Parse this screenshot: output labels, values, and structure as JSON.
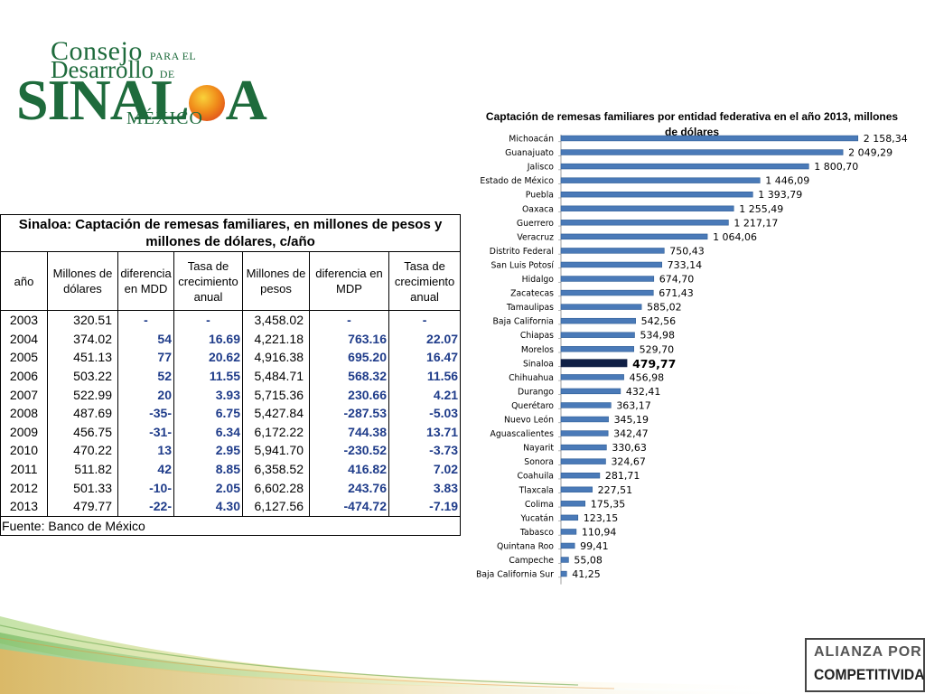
{
  "logo": {
    "line1": "Consejo",
    "line1_small": "PARA EL",
    "line2": "Desarrollo",
    "line2_small": "DE",
    "line3_pre": "SINAL",
    "line3_post": "A",
    "line4": "MÉXICO",
    "colors": {
      "green": "#1e6b3c",
      "sun": "#f08c1a"
    }
  },
  "table": {
    "title": "Sinaloa: Captación de remesas familiares, en millones de pesos y millones de dólares, c/año",
    "headers": [
      "año",
      "Millones de dólares",
      "diferencia en MDD",
      "Tasa de crecimiento anual",
      "Millones de pesos",
      "diferencia en MDP",
      "Tasa de crecimiento anual"
    ],
    "rows": [
      [
        "2003",
        "320.51",
        "-",
        "-",
        "3,458.02",
        "-",
        "-"
      ],
      [
        "2004",
        "374.02",
        "54",
        "16.69",
        "4,221.18",
        "763.16",
        "22.07"
      ],
      [
        "2005",
        "451.13",
        "77",
        "20.62",
        "4,916.38",
        "695.20",
        "16.47"
      ],
      [
        "2006",
        "503.22",
        "52",
        "11.55",
        "5,484.71",
        "568.32",
        "11.56"
      ],
      [
        "2007",
        "522.99",
        "20",
        "3.93",
        "5,715.36",
        "230.66",
        "4.21"
      ],
      [
        "2008",
        "487.69",
        "-35-",
        "6.75",
        "5,427.84",
        "-287.53",
        "-5.03"
      ],
      [
        "2009",
        "456.75",
        "-31-",
        "6.34",
        "6,172.22",
        "744.38",
        "13.71"
      ],
      [
        "2010",
        "470.22",
        "13",
        "2.95",
        "5,941.70",
        "-230.52",
        "-3.73"
      ],
      [
        "2011",
        "511.82",
        "42",
        "8.85",
        "6,358.52",
        "416.82",
        "7.02"
      ],
      [
        "2012",
        "501.33",
        "-10-",
        "2.05",
        "6,602.28",
        "243.76",
        "3.83"
      ],
      [
        "2013",
        "479.77",
        "-22-",
        "4.30",
        "6,127.56",
        "-474.72",
        "-7.19"
      ]
    ],
    "source": "Fuente: Banco de México",
    "colors": {
      "highlight_text": "#1f3c8a"
    }
  },
  "chart_data": {
    "type": "bar",
    "orientation": "horizontal",
    "title": "Captación de remesas familiares por entidad federativa en el año 2013, millones de dólares",
    "categories": [
      "Michoacán",
      "Guanajuato",
      "Jalisco",
      "Estado de México",
      "Puebla",
      "Oaxaca",
      "Guerrero",
      "Veracruz",
      "Distrito Federal",
      "San Luis Potosí",
      "Hidalgo",
      "Zacatecas",
      "Tamaulipas",
      "Baja California",
      "Chiapas",
      "Morelos",
      "Sinaloa",
      "Chihuahua",
      "Durango",
      "Querétaro",
      "Nuevo León",
      "Aguascalientes",
      "Nayarit",
      "Sonora",
      "Coahuila",
      "Tlaxcala",
      "Colima",
      "Yucatán",
      "Tabasco",
      "Quintana Roo",
      "Campeche",
      "Baja California Sur"
    ],
    "values": [
      2158.34,
      2049.29,
      1800.7,
      1446.09,
      1393.79,
      1255.49,
      1217.17,
      1064.06,
      750.43,
      733.14,
      674.7,
      671.43,
      585.02,
      542.56,
      534.98,
      529.7,
      479.77,
      456.98,
      432.41,
      363.17,
      345.19,
      342.47,
      330.63,
      324.67,
      281.71,
      227.51,
      175.35,
      123.15,
      110.94,
      99.41,
      55.08,
      41.25
    ],
    "labels": [
      "2 158,34",
      "2 049,29",
      "1 800,70",
      "1 446,09",
      "1 393,79",
      "1 255,49",
      "1 217,17",
      "1 064,06",
      "750,43",
      "733,14",
      "674,70",
      "671,43",
      "585,02",
      "542,56",
      "534,98",
      "529,70",
      "479,77",
      "456,98",
      "432,41",
      "363,17",
      "345,19",
      "342,47",
      "330,63",
      "324,67",
      "281,71",
      "227,51",
      "175,35",
      "123,15",
      "110,94",
      "99,41",
      "55,08",
      "41,25"
    ],
    "highlight": "Sinaloa",
    "xlim": [
      0,
      2160
    ],
    "grid": false,
    "legend": "none",
    "colors": {
      "bar": "#4a7ab8",
      "bar_dark": "#2f5d95",
      "highlight": "#0f1f45"
    }
  },
  "alianza": {
    "line1": "ALIANZA POR LA",
    "line2": "COMPETITIVIDAD"
  }
}
